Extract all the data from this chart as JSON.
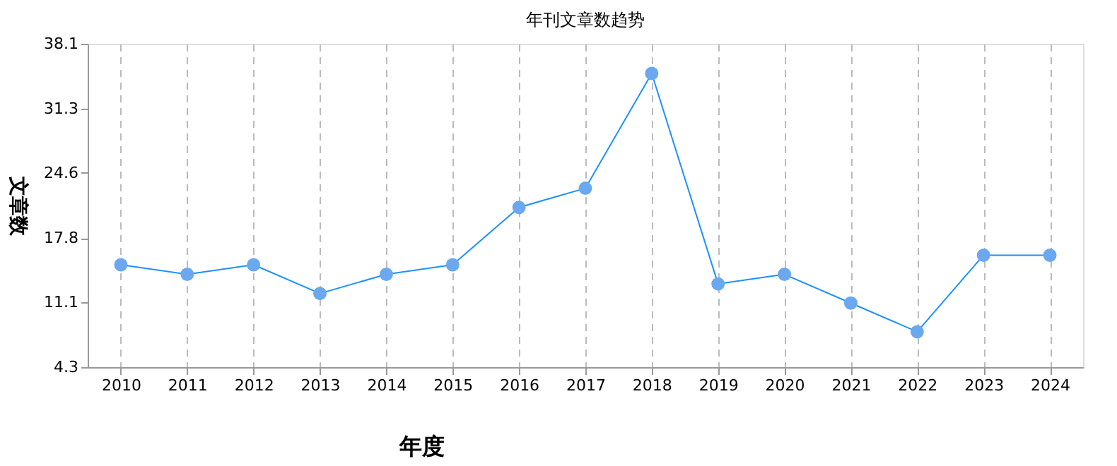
{
  "chart_data": {
    "type": "line",
    "title": "年刊文章数趋势",
    "xlabel": "年度",
    "ylabel": "文章数",
    "categories": [
      "2010",
      "2011",
      "2012",
      "2013",
      "2014",
      "2015",
      "2016",
      "2017",
      "2018",
      "2019",
      "2020",
      "2021",
      "2022",
      "2023",
      "2024"
    ],
    "series": [
      {
        "color": "#1e90ff",
        "values": [
          15,
          14,
          15,
          12,
          14,
          15,
          21,
          23,
          35,
          13,
          14,
          11,
          8,
          16,
          16
        ]
      }
    ],
    "ylim": [
      4.3,
      38.1
    ],
    "yticks": [
      4.3,
      11.1,
      17.8,
      24.6,
      31.3,
      38.1
    ],
    "grid": "x",
    "marker": "circle",
    "line_style": "solid"
  }
}
